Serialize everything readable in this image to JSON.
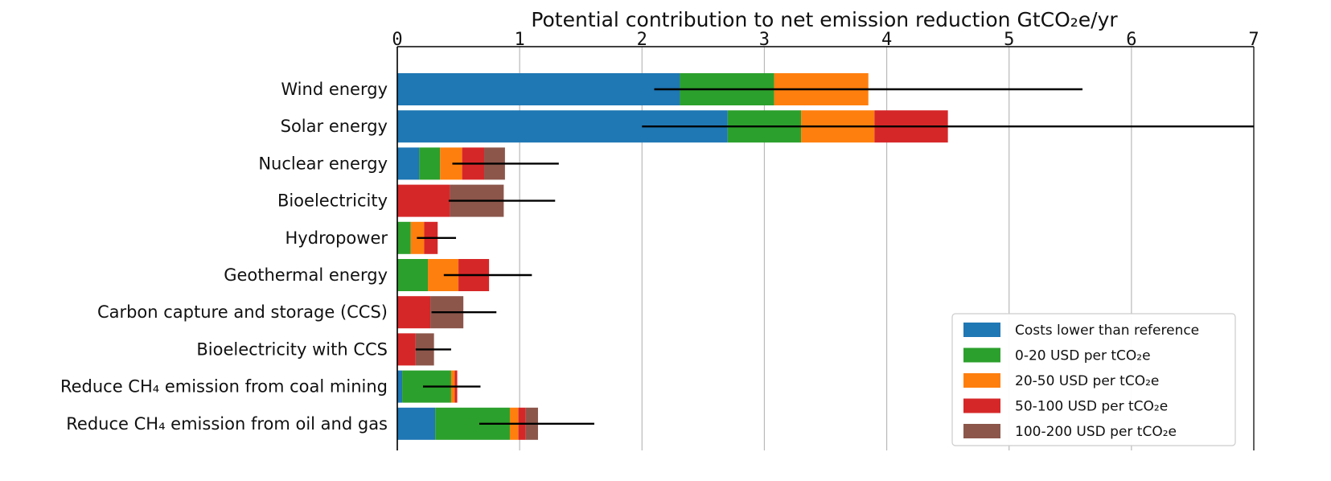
{
  "chart_data": {
    "type": "bar",
    "orientation": "horizontal",
    "stacked": true,
    "title": "Potential contribution to net emission reduction GtCO₂e/yr",
    "xlim": [
      0,
      7
    ],
    "x_ticks": [
      "0",
      "1",
      "2",
      "3",
      "4",
      "5",
      "6",
      "7"
    ],
    "grid": "vertical",
    "legend_position": "lower right",
    "categories": [
      "Wind energy",
      "Solar energy",
      "Nuclear energy",
      "Bioelectricity",
      "Hydropower",
      "Geothermal energy",
      "Carbon capture and storage (CCS)",
      "Bioelectricity with CCS",
      "Reduce CH₄ emission from coal mining",
      "Reduce CH₄ emission from oil and gas"
    ],
    "series": [
      {
        "name": "Costs lower than reference",
        "color": "#1f77b4",
        "values": [
          2.31,
          2.7,
          0.18,
          0.0,
          0.0,
          0.0,
          0.0,
          0.0,
          0.04,
          0.31
        ]
      },
      {
        "name": "0-20 USD per tCO₂e",
        "color": "#2ca02c",
        "values": [
          0.77,
          0.6,
          0.17,
          0.0,
          0.11,
          0.25,
          0.0,
          0.0,
          0.4,
          0.61
        ]
      },
      {
        "name": "20-50 USD per tCO₂e",
        "color": "#ff7f0e",
        "values": [
          0.77,
          0.6,
          0.18,
          0.0,
          0.11,
          0.25,
          0.0,
          0.0,
          0.03,
          0.07
        ]
      },
      {
        "name": "50-100 USD per tCO₂e",
        "color": "#d62728",
        "values": [
          0.0,
          0.6,
          0.18,
          0.43,
          0.11,
          0.25,
          0.27,
          0.15,
          0.02,
          0.06
        ]
      },
      {
        "name": "100-200 USD per tCO₂e",
        "color": "#8c564b",
        "values": [
          0.0,
          0.0,
          0.17,
          0.44,
          0.0,
          0.0,
          0.27,
          0.15,
          0.0,
          0.1
        ]
      }
    ],
    "error_bars": [
      [
        2.1,
        5.6
      ],
      [
        2.0,
        7.0
      ],
      [
        0.45,
        1.32
      ],
      [
        0.42,
        1.29
      ],
      [
        0.16,
        0.48
      ],
      [
        0.38,
        1.1
      ],
      [
        0.28,
        0.81
      ],
      [
        0.15,
        0.44
      ],
      [
        0.21,
        0.68
      ],
      [
        0.67,
        1.61
      ]
    ]
  }
}
